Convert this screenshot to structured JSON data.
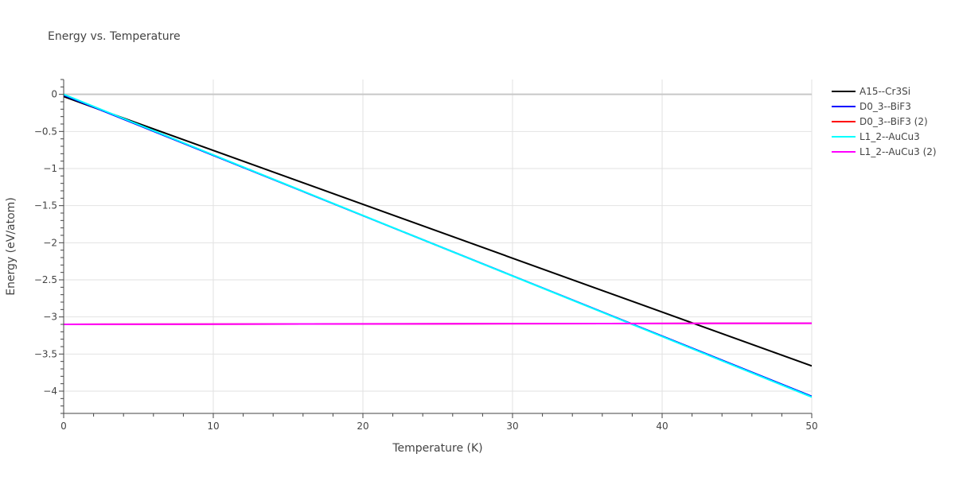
{
  "chart_data": {
    "type": "line",
    "title": "Energy vs. Temperature",
    "xlabel": "Temperature (K)",
    "ylabel": "Energy (eV/atom)",
    "xlim": [
      0,
      50
    ],
    "ylim": [
      -4.3,
      0.2
    ],
    "xticks": [
      0,
      10,
      20,
      30,
      40,
      50
    ],
    "xtick_labels": [
      "0",
      "10",
      "20",
      "30",
      "40",
      "50"
    ],
    "yticks": [
      0,
      -0.5,
      -1,
      -1.5,
      -2,
      -2.5,
      -3,
      -3.5,
      -4
    ],
    "ytick_labels": [
      "0",
      "−0.5",
      "−1",
      "−1.5",
      "−2",
      "−2.5",
      "−3",
      "−3.5",
      "−4"
    ],
    "grid": true,
    "legend_position": "top-right",
    "series": [
      {
        "name": "A15--Cr3Si",
        "color": "#000000",
        "x": [
          0,
          50
        ],
        "y": [
          -0.03,
          -3.66
        ]
      },
      {
        "name": "D0_3--BiF3",
        "color": "#0000ff",
        "x": [
          0,
          50
        ],
        "y": [
          -0.01,
          -4.07
        ]
      },
      {
        "name": "D0_3--BiF3 (2)",
        "color": "#ff0000",
        "x": [
          0,
          50
        ],
        "y": [
          -3.1,
          -3.085
        ]
      },
      {
        "name": "L1_2--AuCu3",
        "color": "#00ffff",
        "x": [
          0,
          50
        ],
        "y": [
          0.0,
          -4.08
        ]
      },
      {
        "name": "L1_2--AuCu3 (2)",
        "color": "#ff00ff",
        "x": [
          0,
          50
        ],
        "y": [
          -3.1,
          -3.085
        ]
      }
    ]
  }
}
